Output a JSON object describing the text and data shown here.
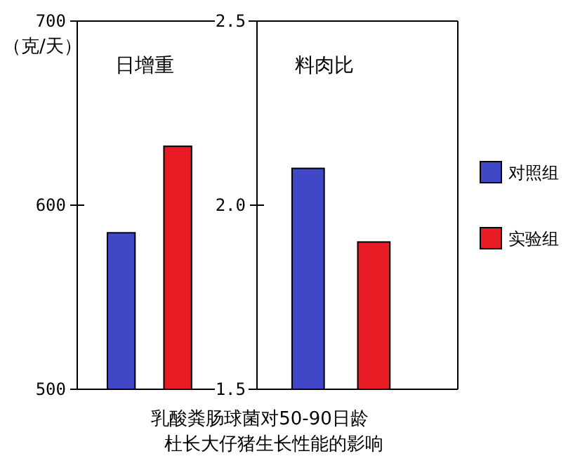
{
  "chart_data": [
    {
      "type": "bar",
      "title": "日增重",
      "ylabel": "（克/天）",
      "categories": [
        null
      ],
      "ylim": [
        500,
        700
      ],
      "yticks": [
        500,
        600,
        700
      ],
      "series": [
        {
          "color": "#4048c8",
          "values": [
            585
          ]
        },
        {
          "color": "#e81c24",
          "values": [
            632
          ]
        }
      ],
      "annotations": [
        "乳酸粪肠球菌对50-90日龄",
        "杜长大仔猪生长性能的影响"
      ],
      "legend": false
    },
    {
      "type": "bar",
      "title": "料肉比",
      "categories": [
        null
      ],
      "ylim": [
        1.5,
        2.5
      ],
      "yticks": [
        1.5,
        {
          "value": 2,
          "label": "2.0"
        },
        2.5
      ],
      "series": [
        {
          "name": "对照组",
          "color": "#4048c8",
          "values": [
            2.1
          ]
        },
        {
          "name": "实验组",
          "color": "#e81c24",
          "values": [
            1.9
          ]
        }
      ],
      "legend": "right"
    }
  ]
}
